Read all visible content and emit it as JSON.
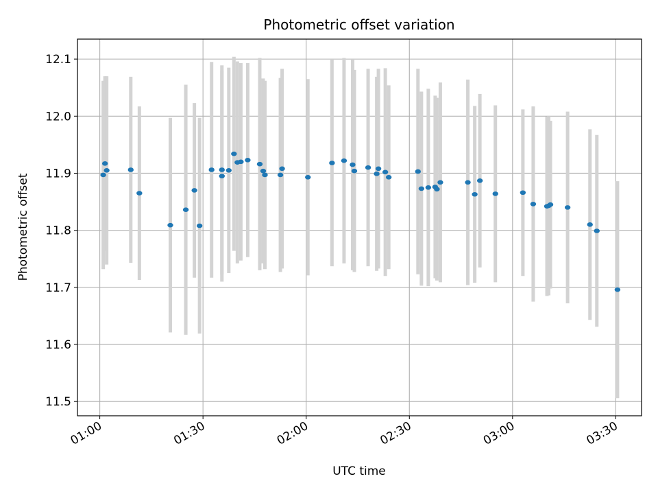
{
  "chart_data": {
    "type": "scatter",
    "title": "Photometric offset variation",
    "xlabel": "UTC time",
    "ylabel": "Photometric offset",
    "x_tick_labels": [
      "01:00",
      "01:30",
      "02:00",
      "02:30",
      "03:00",
      "03:30"
    ],
    "x_tick_minutes": [
      60,
      90,
      120,
      150,
      180,
      210
    ],
    "y_tick_labels": [
      "11.5",
      "11.6",
      "11.7",
      "11.8",
      "11.9",
      "12.0",
      "12.1"
    ],
    "y_tick_values": [
      11.5,
      11.6,
      11.7,
      11.8,
      11.9,
      12.0,
      12.1
    ],
    "xlim": [
      "00:53:30",
      "03:37:30"
    ],
    "ylim": [
      11.475,
      12.135
    ],
    "grid": true,
    "colors": {
      "point": "#1f77b4",
      "errorbar": "#d3d3d3",
      "grid": "#b0b0b0"
    },
    "points": [
      {
        "time": "01:01",
        "y": 11.897,
        "err": 0.165
      },
      {
        "time": "01:01:30",
        "y": 11.917,
        "err": 0.153
      },
      {
        "time": "01:02",
        "y": 11.905,
        "err": 0.165
      },
      {
        "time": "01:09",
        "y": 11.906,
        "err": 0.163
      },
      {
        "time": "01:11:30",
        "y": 11.865,
        "err": 0.152
      },
      {
        "time": "01:20:30",
        "y": 11.809,
        "err": 0.188
      },
      {
        "time": "01:25",
        "y": 11.836,
        "err": 0.219
      },
      {
        "time": "01:27:30",
        "y": 11.87,
        "err": 0.153
      },
      {
        "time": "01:29",
        "y": 11.808,
        "err": 0.189
      },
      {
        "time": "01:32:30",
        "y": 11.906,
        "err": 0.189
      },
      {
        "time": "01:35:30",
        "y": 11.895,
        "err": 0.185
      },
      {
        "time": "01:35:30",
        "y": 11.906,
        "err": 0.183
      },
      {
        "time": "01:37:30",
        "y": 11.905,
        "err": 0.18
      },
      {
        "time": "01:39",
        "y": 11.934,
        "err": 0.17
      },
      {
        "time": "01:40",
        "y": 11.919,
        "err": 0.177
      },
      {
        "time": "01:41",
        "y": 11.92,
        "err": 0.173
      },
      {
        "time": "01:43",
        "y": 11.923,
        "err": 0.17
      },
      {
        "time": "01:46:30",
        "y": 11.916,
        "err": 0.186
      },
      {
        "time": "01:47:30",
        "y": 11.904,
        "err": 0.162
      },
      {
        "time": "01:48",
        "y": 11.897,
        "err": 0.165
      },
      {
        "time": "01:52:30",
        "y": 11.897,
        "err": 0.17
      },
      {
        "time": "01:53",
        "y": 11.908,
        "err": 0.175
      },
      {
        "time": "02:00:30",
        "y": 11.893,
        "err": 0.172
      },
      {
        "time": "02:07:30",
        "y": 11.918,
        "err": 0.181
      },
      {
        "time": "02:11",
        "y": 11.922,
        "err": 0.18
      },
      {
        "time": "02:13:30",
        "y": 11.915,
        "err": 0.185
      },
      {
        "time": "02:14",
        "y": 11.904,
        "err": 0.177
      },
      {
        "time": "02:18",
        "y": 11.91,
        "err": 0.173
      },
      {
        "time": "02:20:30",
        "y": 11.899,
        "err": 0.17
      },
      {
        "time": "02:21",
        "y": 11.908,
        "err": 0.175
      },
      {
        "time": "02:23",
        "y": 11.902,
        "err": 0.182
      },
      {
        "time": "02:24",
        "y": 11.893,
        "err": 0.161
      },
      {
        "time": "02:32:30",
        "y": 11.903,
        "err": 0.18
      },
      {
        "time": "02:33:30",
        "y": 11.873,
        "err": 0.17
      },
      {
        "time": "02:35:30",
        "y": 11.875,
        "err": 0.173
      },
      {
        "time": "02:37:30",
        "y": 11.876,
        "err": 0.16
      },
      {
        "time": "02:38",
        "y": 11.872,
        "err": 0.16
      },
      {
        "time": "02:39",
        "y": 11.884,
        "err": 0.175
      },
      {
        "time": "02:47",
        "y": 11.884,
        "err": 0.18
      },
      {
        "time": "02:49",
        "y": 11.863,
        "err": 0.155
      },
      {
        "time": "02:50:30",
        "y": 11.887,
        "err": 0.152
      },
      {
        "time": "02:55",
        "y": 11.864,
        "err": 0.155
      },
      {
        "time": "03:03",
        "y": 11.866,
        "err": 0.146
      },
      {
        "time": "03:06",
        "y": 11.846,
        "err": 0.171
      },
      {
        "time": "03:10",
        "y": 11.842,
        "err": 0.157
      },
      {
        "time": "03:10:30",
        "y": 11.843,
        "err": 0.157
      },
      {
        "time": "03:11",
        "y": 11.845,
        "err": 0.147
      },
      {
        "time": "03:16",
        "y": 11.84,
        "err": 0.168
      },
      {
        "time": "03:22:30",
        "y": 11.81,
        "err": 0.167
      },
      {
        "time": "03:24:30",
        "y": 11.799,
        "err": 0.168
      },
      {
        "time": "03:30:30",
        "y": 11.696,
        "err": 0.19
      }
    ]
  }
}
